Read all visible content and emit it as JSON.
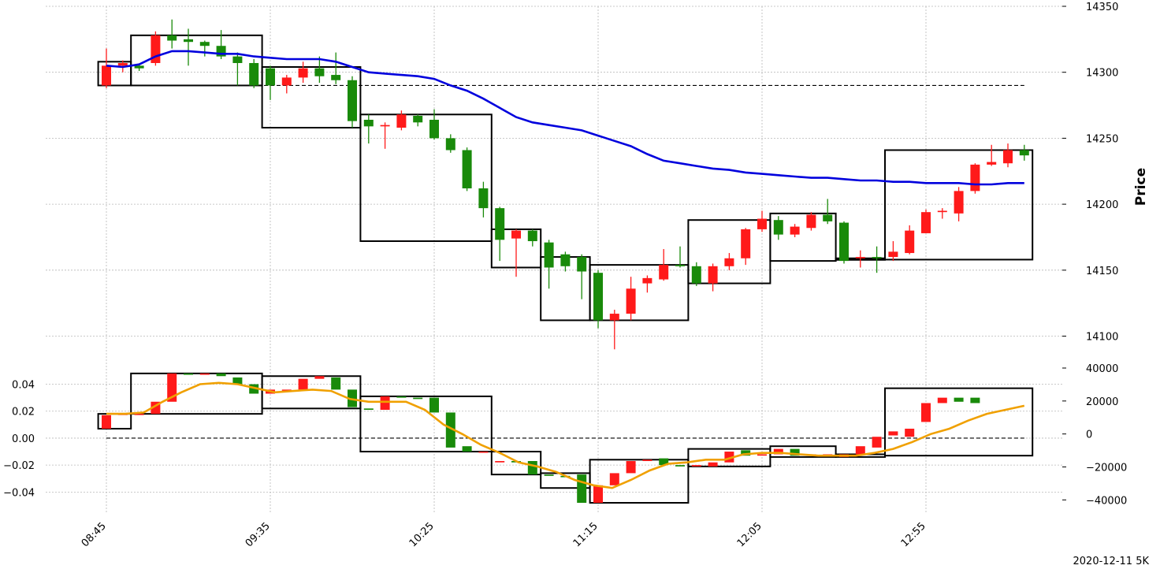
{
  "footer": "2020-12-11 5K",
  "chart_data": [
    {
      "type": "candlestick",
      "panel": "price",
      "ylabel": "Price",
      "ylim": [
        14080,
        14350
      ],
      "yticks": [
        "14100",
        "14150",
        "14200",
        "14250",
        "14300",
        "14350"
      ],
      "xticks": [
        "08:45",
        "09:35",
        "10:25",
        "11:15",
        "12:05",
        "12:55"
      ],
      "grid": true,
      "colors": {
        "up": "#ff1a1a",
        "down": "#198a0a",
        "ma": "#0000dd"
      },
      "reference_level": 14290,
      "candles": [
        [
          14290,
          14305,
          14288,
          14318
        ],
        [
          14305,
          14307,
          14300,
          14309
        ],
        [
          14305,
          14303,
          14301,
          14306
        ],
        [
          14307,
          14328,
          14305,
          14331
        ],
        [
          14328,
          14324,
          14318,
          14340
        ],
        [
          14325,
          14323,
          14305,
          14333
        ],
        [
          14323,
          14320,
          14312,
          14324
        ],
        [
          14320,
          14312,
          14310,
          14332
        ],
        [
          14312,
          14307,
          14290,
          14315
        ],
        [
          14307,
          14290,
          14288,
          14310
        ],
        [
          14303,
          14290,
          14279,
          14305
        ],
        [
          14290,
          14296,
          14284,
          14298
        ],
        [
          14296,
          14303,
          14292,
          14308
        ],
        [
          14303,
          14297,
          14292,
          14312
        ],
        [
          14298,
          14294,
          14291,
          14315
        ],
        [
          14294,
          14263,
          14258,
          14297
        ],
        [
          14264,
          14259,
          14246,
          14268
        ],
        [
          14259,
          14260,
          14242,
          14262
        ],
        [
          14258,
          14268,
          14256,
          14271
        ],
        [
          14267,
          14262,
          14259,
          14268
        ],
        [
          14264,
          14250,
          14249,
          14272
        ],
        [
          14250,
          14241,
          14239,
          14253
        ],
        [
          14241,
          14212,
          14210,
          14243
        ],
        [
          14212,
          14197,
          14190,
          14217
        ],
        [
          14197,
          14173,
          14157,
          14198
        ],
        [
          14174,
          14180,
          14145,
          14181
        ],
        [
          14180,
          14172,
          14168,
          14181
        ],
        [
          14171,
          14152,
          14136,
          14173
        ],
        [
          14162,
          14153,
          14149,
          14164
        ],
        [
          14160,
          14149,
          14128,
          14162
        ],
        [
          14148,
          14112,
          14106,
          14150
        ],
        [
          14112,
          14117,
          14090,
          14120
        ],
        [
          14117,
          14136,
          14112,
          14145
        ],
        [
          14140,
          14144,
          14133,
          14146
        ],
        [
          14143,
          14154,
          14142,
          14166
        ],
        [
          14154,
          14153,
          14152,
          14168
        ],
        [
          14153,
          14140,
          14138,
          14156
        ],
        [
          14140,
          14153,
          14134,
          14155
        ],
        [
          14153,
          14159,
          14150,
          14163
        ],
        [
          14159,
          14181,
          14154,
          14182
        ],
        [
          14181,
          14189,
          14179,
          14195
        ],
        [
          14188,
          14177,
          14173,
          14191
        ],
        [
          14177,
          14183,
          14175,
          14185
        ],
        [
          14182,
          14192,
          14180,
          14194
        ],
        [
          14192,
          14187,
          14185,
          14204
        ],
        [
          14186,
          14157,
          14155,
          14187
        ],
        [
          14159,
          14160,
          14152,
          14165
        ],
        [
          14160,
          14159,
          14148,
          14168
        ],
        [
          14160,
          14164,
          14157,
          14172
        ],
        [
          14163,
          14180,
          14162,
          14184
        ],
        [
          14178,
          14194,
          14178,
          14196
        ],
        [
          14194,
          14195,
          14189,
          14197
        ],
        [
          14193,
          14210,
          14187,
          14213
        ],
        [
          14210,
          14230,
          14208,
          14231
        ],
        [
          14230,
          14232,
          14229,
          14245
        ],
        [
          14231,
          14241,
          14228,
          14246
        ],
        [
          14241,
          14237,
          14233,
          14245
        ]
      ],
      "ma": [
        14305,
        14304,
        14306,
        14312,
        14316,
        14316,
        14315,
        14314,
        14314,
        14312,
        14311,
        14310,
        14310,
        14310,
        14308,
        14304,
        14300,
        14299,
        14298,
        14297,
        14295,
        14290,
        14286,
        14280,
        14273,
        14266,
        14262,
        14260,
        14258,
        14256,
        14252,
        14248,
        14244,
        14238,
        14233,
        14231,
        14229,
        14227,
        14226,
        14224,
        14223,
        14222,
        14221,
        14220,
        14220,
        14219,
        14218,
        14218,
        14217,
        14217,
        14216,
        14216,
        14216,
        14215,
        14215,
        14216,
        14216
      ],
      "boxes": [
        {
          "from": 0,
          "to": 1,
          "low": 14290,
          "high": 14308
        },
        {
          "from": 2,
          "to": 9,
          "low": 14290,
          "high": 14328
        },
        {
          "from": 10,
          "to": 15,
          "low": 14258,
          "high": 14304
        },
        {
          "from": 16,
          "to": 23,
          "low": 14172,
          "high": 14268
        },
        {
          "from": 24,
          "to": 26,
          "low": 14152,
          "high": 14181
        },
        {
          "from": 27,
          "to": 29,
          "low": 14112,
          "high": 14160
        },
        {
          "from": 30,
          "to": 35,
          "low": 14112,
          "high": 14154
        },
        {
          "from": 36,
          "to": 40,
          "low": 14140,
          "high": 14188
        },
        {
          "from": 41,
          "to": 44,
          "low": 14157,
          "high": 14193
        },
        {
          "from": 45,
          "to": 47,
          "low": 14158,
          "high": 14159
        },
        {
          "from": 48,
          "to": 56,
          "low": 14158,
          "high": 14241
        }
      ]
    },
    {
      "type": "candlestick",
      "panel": "indicator",
      "ylim_left": [
        -0.055,
        0.052
      ],
      "yticks_left": [
        "0.04",
        "0.02",
        "0.00",
        "−0.02",
        "−0.04"
      ],
      "ylim_right": [
        -47500,
        40000
      ],
      "yticks_right": [
        "40000",
        "20000",
        "0",
        "−20000",
        "−40000"
      ],
      "grid": true,
      "reference_level": 0,
      "colors": {
        "up": "#ff1a1a",
        "down": "#198a0a",
        "smooth": "#f0a000"
      },
      "candles": [
        [
          0.007,
          0.017
        ],
        [
          0.018,
          0.018
        ],
        [
          0.018,
          0.018
        ],
        [
          0.018,
          0.027
        ],
        [
          0.027,
          0.048
        ],
        [
          0.048,
          0.047
        ],
        [
          0.047,
          0.048
        ],
        [
          0.048,
          0.046
        ],
        [
          0.045,
          0.04
        ],
        [
          0.04,
          0.033
        ],
        [
          0.033,
          0.036
        ],
        [
          0.036,
          0.036
        ],
        [
          0.036,
          0.044
        ],
        [
          0.044,
          0.046
        ],
        [
          0.045,
          0.036
        ],
        [
          0.036,
          0.023
        ],
        [
          0.022,
          0.021
        ],
        [
          0.021,
          0.031
        ],
        [
          0.031,
          0.03
        ],
        [
          0.03,
          0.029
        ],
        [
          0.03,
          0.019
        ],
        [
          0.019,
          -0.007
        ],
        [
          -0.006,
          -0.01
        ],
        [
          -0.01,
          -0.01
        ],
        [
          -0.018,
          -0.017
        ],
        [
          -0.017,
          -0.018
        ],
        [
          -0.017,
          -0.027
        ],
        [
          -0.027,
          -0.028
        ],
        [
          -0.028,
          -0.029
        ],
        [
          -0.027,
          -0.048
        ],
        [
          -0.048,
          -0.035
        ],
        [
          -0.035,
          -0.026
        ],
        [
          -0.026,
          -0.017
        ],
        [
          -0.017,
          -0.016
        ],
        [
          -0.015,
          -0.02
        ],
        [
          -0.02,
          -0.021
        ],
        [
          -0.021,
          -0.02
        ],
        [
          -0.021,
          -0.018
        ],
        [
          -0.018,
          -0.01
        ],
        [
          -0.009,
          -0.013
        ],
        [
          -0.013,
          -0.012
        ],
        [
          -0.012,
          -0.008
        ],
        [
          -0.008,
          -0.013
        ],
        [
          -0.013,
          -0.012
        ],
        [
          -0.013,
          -0.012
        ],
        [
          -0.014,
          -0.012
        ],
        [
          -0.012,
          -0.006
        ],
        [
          -0.007,
          0.001
        ],
        [
          0.002,
          0.005
        ],
        [
          0.001,
          0.007
        ],
        [
          0.012,
          0.026
        ],
        [
          0.026,
          0.03
        ],
        [
          0.03,
          0.027
        ],
        [
          0.03,
          0.026
        ]
      ],
      "smooth": [
        0.018,
        0.018,
        0.019,
        0.027,
        0.034,
        0.04,
        0.041,
        0.04,
        0.037,
        0.034,
        0.035,
        0.036,
        0.035,
        0.029,
        0.027,
        0.027,
        0.027,
        0.021,
        0.01,
        0.003,
        -0.005,
        -0.011,
        -0.018,
        -0.021,
        -0.025,
        -0.031,
        -0.035,
        -0.037,
        -0.031,
        -0.024,
        -0.019,
        -0.018,
        -0.016,
        -0.016,
        -0.012,
        -0.011,
        -0.011,
        -0.012,
        -0.013,
        -0.013,
        -0.013,
        -0.011,
        -0.008,
        -0.003,
        0.003,
        0.007,
        0.013,
        0.018,
        0.021,
        0.024
      ],
      "boxes": [
        {
          "from": 0,
          "to": 1,
          "low": 0.007,
          "high": 0.018
        },
        {
          "from": 2,
          "to": 9,
          "low": 0.018,
          "high": 0.048
        },
        {
          "from": 10,
          "to": 15,
          "low": 0.022,
          "high": 0.046
        },
        {
          "from": 16,
          "to": 23,
          "low": -0.01,
          "high": 0.031
        },
        {
          "from": 24,
          "to": 26,
          "low": -0.027,
          "high": -0.01
        },
        {
          "from": 27,
          "to": 29,
          "low": -0.037,
          "high": -0.026
        },
        {
          "from": 30,
          "to": 35,
          "low": -0.048,
          "high": -0.016
        },
        {
          "from": 36,
          "to": 40,
          "low": -0.021,
          "high": -0.008
        },
        {
          "from": 41,
          "to": 44,
          "low": -0.014,
          "high": -0.006
        },
        {
          "from": 45,
          "to": 47,
          "low": -0.014,
          "high": -0.012
        },
        {
          "from": 48,
          "to": 56,
          "low": -0.013,
          "high": 0.037
        }
      ]
    }
  ]
}
